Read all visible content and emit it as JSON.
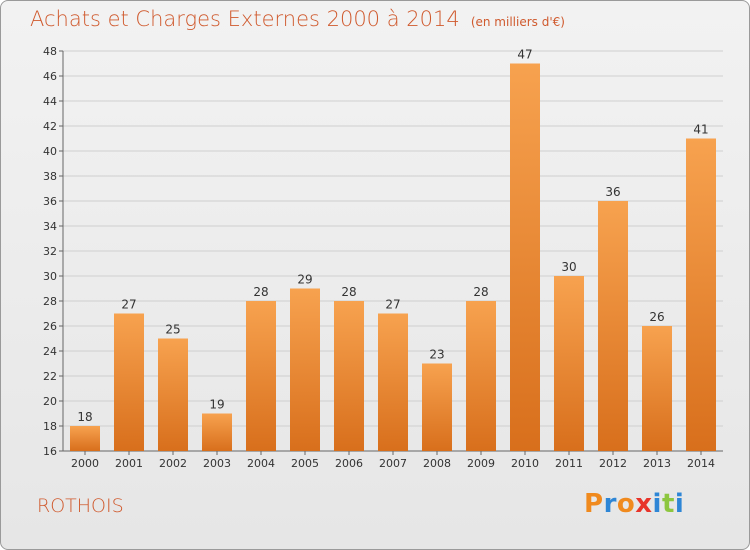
{
  "chart_data": {
    "type": "bar",
    "title": "Achats et Charges Externes 2000 à 2014",
    "subtitle": "(en milliers d'€)",
    "categories": [
      "2000",
      "2001",
      "2002",
      "2003",
      "2004",
      "2005",
      "2006",
      "2007",
      "2008",
      "2009",
      "2010",
      "2011",
      "2012",
      "2013",
      "2014"
    ],
    "values": [
      18,
      27,
      25,
      19,
      28,
      29,
      28,
      27,
      23,
      28,
      47,
      30,
      36,
      26,
      41
    ],
    "ylim": [
      16,
      48
    ],
    "yticks": [
      16,
      18,
      20,
      22,
      24,
      26,
      28,
      30,
      32,
      34,
      36,
      38,
      40,
      42,
      44,
      46,
      48
    ],
    "grid": "horizontal",
    "bar_color_light": "#f7a24f",
    "bar_color_dark": "#d86f1c"
  },
  "commune": "ROTHOIS",
  "brand": {
    "letters": [
      "P",
      "r",
      "o",
      "x",
      "i",
      "t",
      "i"
    ],
    "colors": [
      "#f08a1e",
      "#2e86d6",
      "#f08a1e",
      "#e8342a",
      "#2e86d6",
      "#8dc63f",
      "#2e86d6"
    ]
  },
  "colors": {
    "title": "#d05a2e",
    "grid": "#cfcfcf"
  }
}
